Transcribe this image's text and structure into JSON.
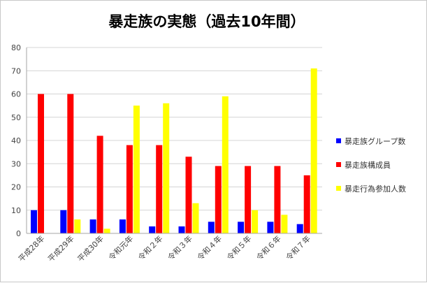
{
  "chart_data": {
    "type": "bar",
    "title": "暴走族の実態（過去10年間）",
    "xlabel": "",
    "ylabel": "",
    "ylim": [
      0,
      80
    ],
    "yticks": [
      0,
      10,
      20,
      30,
      40,
      50,
      60,
      70,
      80
    ],
    "grid": "horizontal",
    "legend_position": "right",
    "categories": [
      "平成28年",
      "平成29年",
      "平成30年",
      "令和元年",
      "令和２年",
      "令和３年",
      "令和４年",
      "令和５年",
      "令和６年",
      "令和７年"
    ],
    "series": [
      {
        "name": "暴走族グループ数",
        "color": "#0000ff",
        "values": [
          10,
          10,
          6,
          6,
          3,
          3,
          5,
          5,
          5,
          4
        ]
      },
      {
        "name": "暴走族構成員",
        "color": "#ff0000",
        "values": [
          60,
          60,
          42,
          38,
          38,
          33,
          29,
          29,
          29,
          25
        ]
      },
      {
        "name": "暴走行為参加人数",
        "color": "#ffff00",
        "values": [
          0,
          6,
          2,
          55,
          56,
          13,
          59,
          10,
          8,
          71
        ]
      }
    ]
  }
}
